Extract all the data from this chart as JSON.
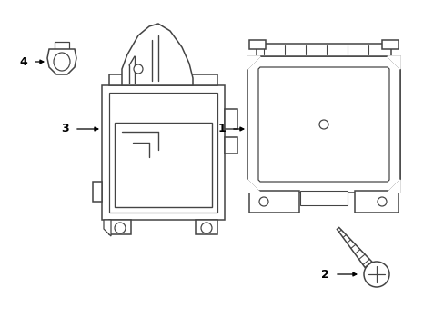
{
  "background_color": "#ffffff",
  "line_color": "#444444",
  "line_width": 1.1,
  "fig_w": 4.89,
  "fig_h": 3.6,
  "dpi": 100
}
